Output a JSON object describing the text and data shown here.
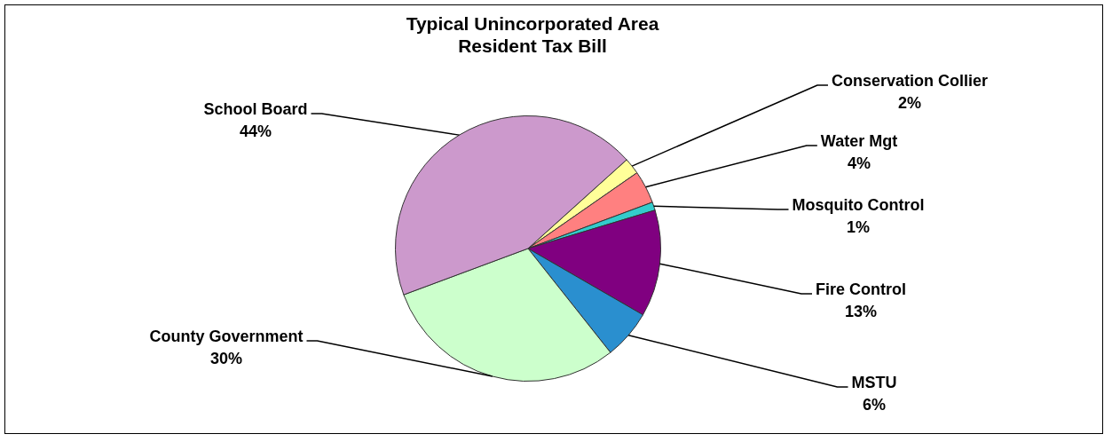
{
  "chart_data": {
    "type": "pie",
    "title": "Typical Unincorporated Area Resident Tax Bill",
    "categories": [
      "Conservation Collier",
      "Water Mgt",
      "Mosquito Control",
      "Fire Control",
      "MSTU",
      "County Government",
      "School Board"
    ],
    "values": [
      2,
      4,
      1,
      13,
      6,
      30,
      44
    ],
    "colors": [
      "#ffff99",
      "#ff8080",
      "#33cccc",
      "#800080",
      "#2a8fcf",
      "#ccffcc",
      "#cc99cc"
    ],
    "value_labels": [
      "2%",
      "4%",
      "1%",
      "13%",
      "6%",
      "30%",
      "44%"
    ]
  }
}
